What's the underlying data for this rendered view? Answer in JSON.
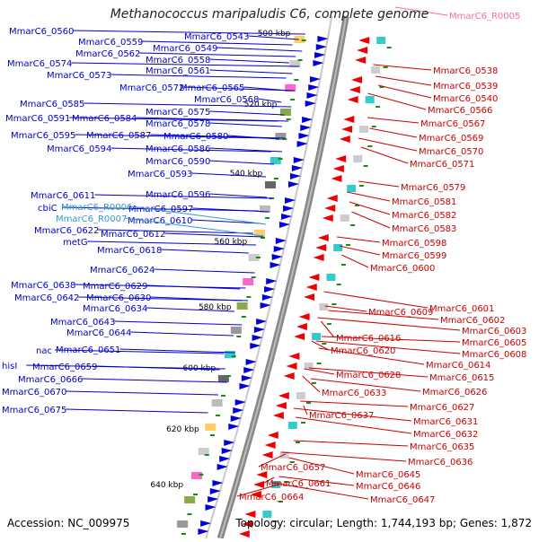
{
  "title": "Methanococcus maripaludis C6, complete genome",
  "accession": "Accession: NC_009975",
  "topology": "Topology: circular; Length: 1,744,193 bp; Genes: 1,872",
  "colors": {
    "left_label": "#0000cc",
    "right_label": "#cc0000",
    "rna_label": "#3399cc",
    "trna_label": "#ff66aa",
    "backbone": "#888888",
    "forward_gene": "#0000dd",
    "reverse_gene": "#ee0000",
    "tick": "#1a8a1a"
  },
  "scale_labels": [
    "500 kbp",
    "520 kbp",
    "540 kbp",
    "560 kbp",
    "580 kbp",
    "600 kbp",
    "620 kbp",
    "640 kbp"
  ],
  "left_labels": [
    "MmarC6_0560",
    "MmarC6_0543",
    "MmarC6_0559",
    "MmarC6_0549",
    "MmarC6_0562",
    "MmarC6_0558",
    "MmarC6_0574",
    "MmarC6_0561",
    "MmarC6_0573",
    "MmarC6_0572",
    "MmarC6_0565",
    "MmarC6_0568",
    "MmarC6_0585",
    "MmarC6_0575",
    "MmarC6_0591",
    "MmarC6_0584",
    "MmarC6_0578",
    "MmarC6_0595",
    "MmarC6_0587",
    "MmarC6_0580",
    "MmarC6_0594",
    "MmarC6_0586",
    "MmarC6_0590",
    "MmarC6_0593",
    "MmarC6_0611",
    "MmarC6_0596",
    "cbiC",
    "MmarC6_0597",
    "MmarC6_0610",
    "MmarC6_0622",
    "MmarC6_0612",
    "metG",
    "MmarC6_0618",
    "MmarC6_0624",
    "MmarC6_0638",
    "MmarC6_0629",
    "MmarC6_0642",
    "MmarC6_0630",
    "MmarC6_0634",
    "MmarC6_0643",
    "MmarC6_0644",
    "nac",
    "MmarC6_0651",
    "hisI",
    "MmarC6_0659",
    "MmarC6_0666",
    "MmarC6_0670",
    "MmarC6_0675"
  ],
  "rna_labels": [
    "MmarC6_R0006",
    "MmarC6_R0007"
  ],
  "trna_label": "MmarC6_R0005",
  "right_labels": [
    "MmarC6_0538",
    "MmarC6_0539",
    "MmarC6_0540",
    "MmarC6_0566",
    "MmarC6_0567",
    "MmarC6_0569",
    "MmarC6_0570",
    "MmarC6_0571",
    "MmarC6_0579",
    "MmarC6_0581",
    "MmarC6_0582",
    "MmarC6_0583",
    "MmarC6_0598",
    "MmarC6_0599",
    "MmarC6_0600",
    "MmarC6_0601",
    "MmarC6_0609",
    "MmarC6_0602",
    "MmarC6_0603",
    "MmarC6_0616",
    "MmarC6_0605",
    "MmarC6_0620",
    "MmarC6_0608",
    "MmarC6_0614",
    "MmarC6_0628",
    "MmarC6_0615",
    "MmarC6_0626",
    "MmarC6_0633",
    "MmarC6_0627",
    "MmarC6_0637",
    "MmarC6_0631",
    "MmarC6_0632",
    "MmarC6_0635",
    "MmarC6_0636",
    "MmarC6_0657",
    "MmarC6_0645",
    "MmarC6_0661",
    "MmarC6_0646",
    "MmarC6_0664",
    "MmarC6_0647"
  ]
}
